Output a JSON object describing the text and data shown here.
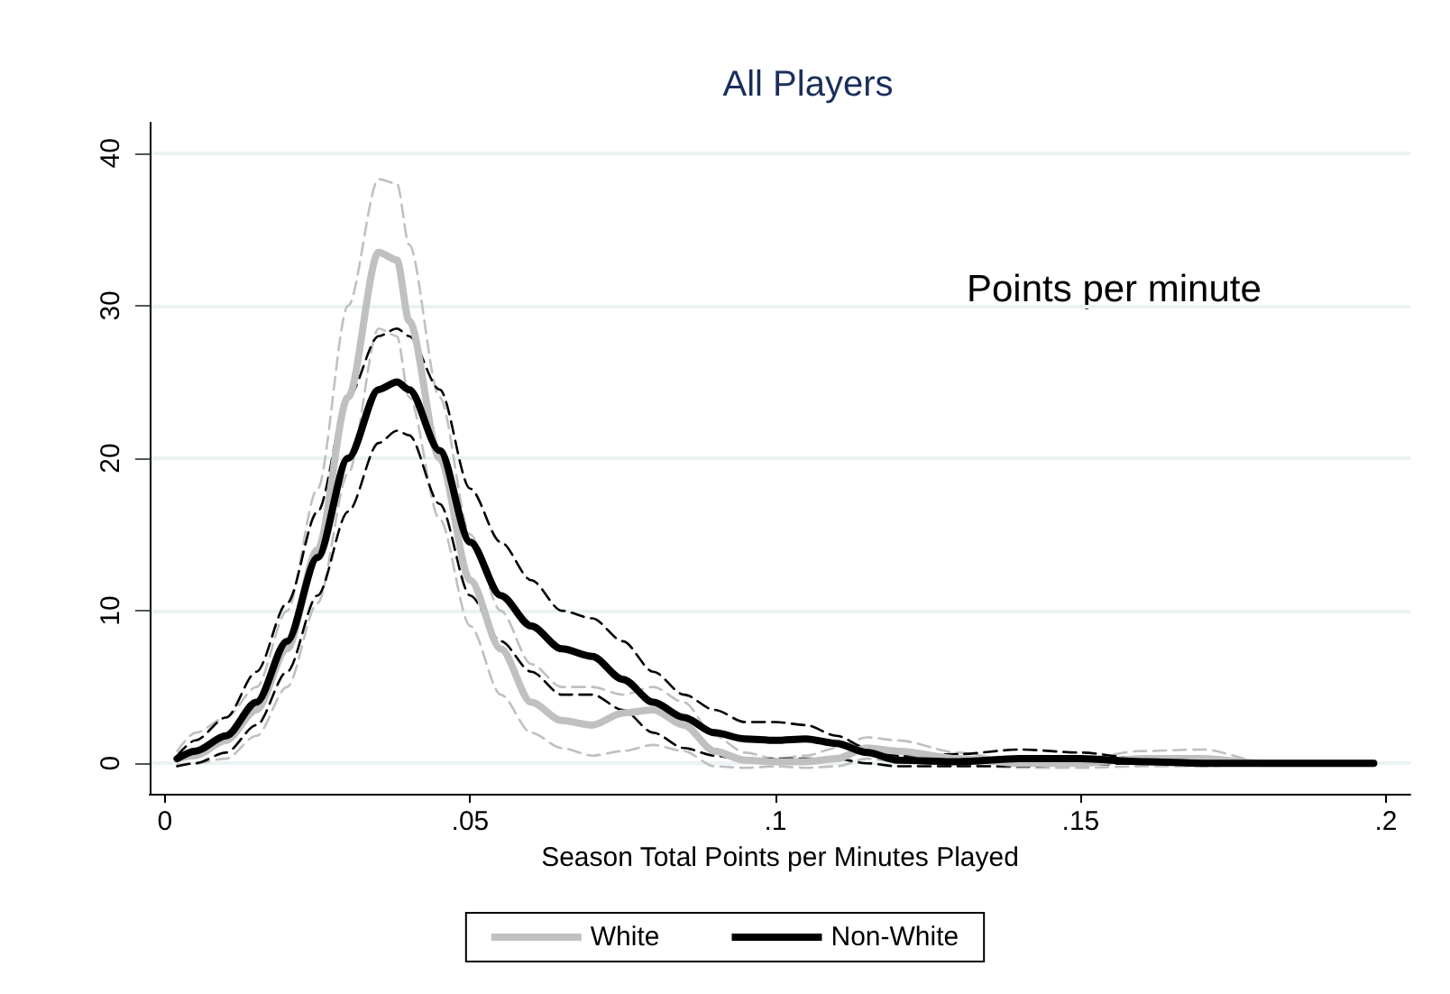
{
  "chart_data": {
    "type": "line",
    "title": "All Players",
    "xlabel": "Season Total Points per Minutes Played",
    "annotations": [
      "Points per minute"
    ],
    "x": [
      0.002,
      0.005,
      0.01,
      0.015,
      0.02,
      0.025,
      0.03,
      0.035,
      0.038,
      0.04,
      0.045,
      0.05,
      0.055,
      0.06,
      0.065,
      0.07,
      0.075,
      0.08,
      0.085,
      0.09,
      0.095,
      0.1,
      0.105,
      0.11,
      0.115,
      0.12,
      0.13,
      0.14,
      0.15,
      0.16,
      0.17,
      0.18,
      0.198
    ],
    "series": [
      {
        "color": "#c0c0c0",
        "line_style": "dashed",
        "values": [
          0.8,
          2,
          3,
          5,
          10,
          18,
          30,
          38.3,
          38,
          34,
          24,
          15,
          10,
          6.5,
          5,
          5,
          4.5,
          5,
          4,
          1.8,
          0.7,
          0.3,
          0.5,
          1,
          1.7,
          1.5,
          0.7,
          0.1,
          0.3,
          0.8,
          0.9,
          0.1,
          0
        ]
      },
      {
        "color": "#c0c0c0",
        "line_style": "dashed",
        "values": [
          -0.1,
          0,
          0.3,
          1.8,
          5,
          10.5,
          19,
          28.5,
          28,
          24,
          16,
          9,
          4.5,
          2,
          1,
          0.5,
          0.8,
          1.2,
          0.8,
          -0.2,
          -0.3,
          -0.2,
          -0.3,
          -0.2,
          0.3,
          0.1,
          -0.1,
          -0.3,
          -0.3,
          -0.2,
          -0.2,
          0,
          0
        ]
      },
      {
        "color": "#000000",
        "line_style": "dashed",
        "values": [
          0.5,
          1.5,
          3,
          6,
          10.5,
          16.5,
          24,
          28,
          28.5,
          28,
          24.5,
          18,
          14.5,
          12,
          10,
          9.5,
          8,
          6,
          4.5,
          3.5,
          2.7,
          2.7,
          2.5,
          1.8,
          1,
          0.5,
          0.6,
          0.9,
          0.7,
          0.3,
          0.1,
          0,
          0
        ]
      },
      {
        "color": "#000000",
        "line_style": "dashed",
        "values": [
          -0.2,
          0,
          0.7,
          2.5,
          6,
          11,
          16.5,
          21,
          21.8,
          21.5,
          17,
          11,
          8,
          6,
          4.5,
          4.5,
          3.5,
          2,
          1,
          0.5,
          0.2,
          0.3,
          0.3,
          0.3,
          0,
          -0.2,
          -0.2,
          -0.2,
          -0.1,
          0,
          0,
          0,
          0
        ]
      },
      {
        "name": "White",
        "color": "#c0c0c0",
        "values": [
          0.3,
          0.5,
          1.5,
          3.5,
          7.5,
          14,
          24,
          33.5,
          33,
          29,
          20,
          12,
          7.5,
          4,
          2.8,
          2.5,
          3.3,
          3.5,
          2.5,
          0.8,
          0.2,
          0.1,
          0.1,
          0.3,
          1.0,
          0.8,
          0.3,
          0,
          0,
          0.3,
          0.3,
          0,
          0
        ]
      },
      {
        "name": "Non-White",
        "color": "#000000",
        "values": [
          0.3,
          0.8,
          1.8,
          4,
          8,
          13.5,
          20,
          24.5,
          25,
          24.5,
          20.5,
          14.5,
          11,
          9,
          7.5,
          7,
          5.5,
          4,
          3,
          2,
          1.6,
          1.5,
          1.6,
          1.3,
          0.7,
          0.2,
          0.1,
          0.3,
          0.3,
          0.1,
          0,
          0,
          0
        ]
      }
    ],
    "xlim": [
      -0.0025,
      0.204
    ],
    "xticks": [
      0,
      {
        "value": 0.05,
        "label": ".05"
      },
      {
        "value": 0.1,
        "label": ".1"
      },
      {
        "value": 0.15,
        "label": ".15"
      },
      {
        "value": 0.2,
        "label": ".2"
      }
    ],
    "ylim": [
      -2,
      42
    ],
    "yticks": [
      0,
      10,
      20,
      30,
      40
    ],
    "grid": "y",
    "legend": "bottom",
    "line_style": "solid",
    "marker": "none"
  }
}
